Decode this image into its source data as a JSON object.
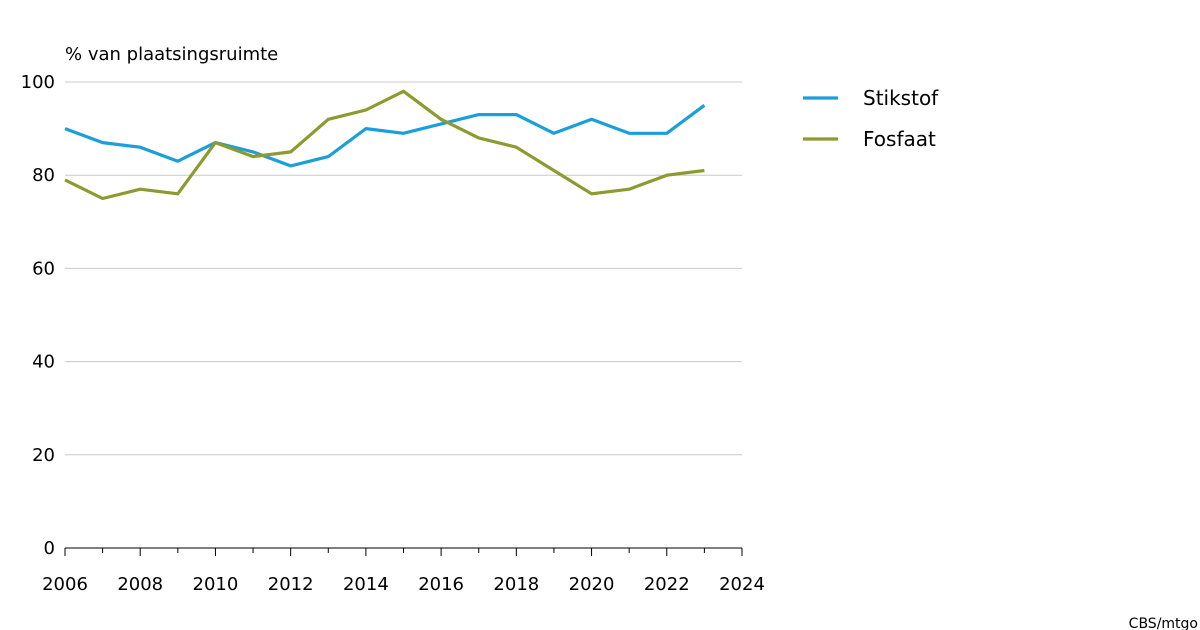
{
  "chart_data": {
    "type": "line",
    "ylabel": "% van plaatsingsruimte",
    "xlim": [
      2006,
      2024
    ],
    "ylim": [
      0,
      100
    ],
    "x_ticks": [
      2006,
      2008,
      2010,
      2012,
      2014,
      2016,
      2018,
      2020,
      2022,
      2024
    ],
    "y_ticks": [
      0,
      20,
      40,
      60,
      80,
      100
    ],
    "grid": true,
    "legend_position": "top-right",
    "x": [
      2006,
      2007,
      2008,
      2009,
      2010,
      2011,
      2012,
      2013,
      2014,
      2015,
      2016,
      2017,
      2018,
      2019,
      2020,
      2021,
      2022,
      2023
    ],
    "series": [
      {
        "name": "Stikstof",
        "color": "#1a9fd9",
        "values": [
          90,
          87,
          86,
          83,
          87,
          85,
          82,
          84,
          90,
          89,
          91,
          93,
          93,
          89,
          92,
          89,
          89,
          95
        ]
      },
      {
        "name": "Fosfaat",
        "color": "#8c9a2e",
        "values": [
          79,
          75,
          77,
          76,
          87,
          84,
          85,
          92,
          94,
          98,
          92,
          88,
          86,
          81,
          76,
          77,
          80,
          81
        ]
      }
    ]
  },
  "source_text": "CBS/mtgo"
}
